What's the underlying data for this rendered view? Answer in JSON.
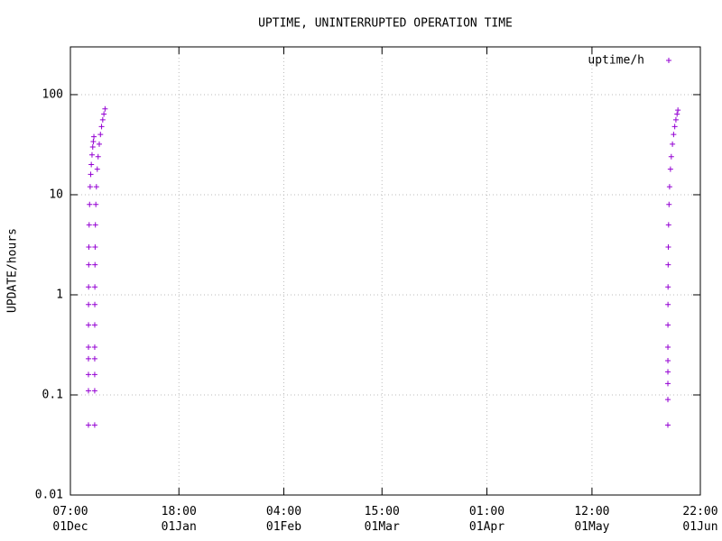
{
  "chart_data": {
    "type": "scatter",
    "title": "UPTIME, UNINTERRUPTED OPERATION TIME",
    "y_label": "UPDATE/hours",
    "log_y": true,
    "grid": true,
    "legend": "top-right",
    "xlim": [
      "12-01 07:00",
      "06-01 22:00"
    ],
    "xticks": [
      {
        "value": "12-01 07:00",
        "label": "07:00\n01Dec"
      },
      {
        "value": "01-01 18:00",
        "label": "18:00\n01Jan"
      },
      {
        "value": "02-01 04:00",
        "label": "04:00\n01Feb"
      },
      {
        "value": "03-01 15:00",
        "label": "15:00\n01Mar"
      },
      {
        "value": "04-01 01:00",
        "label": "01:00\n01Apr"
      },
      {
        "value": "05-01 12:00",
        "label": "12:00\n01May"
      },
      {
        "value": "06-01 22:00",
        "label": "22:00\n01Jun"
      }
    ],
    "ylim": [
      0.01,
      300
    ],
    "yticks": [
      0.01,
      0.1,
      1,
      10,
      100
    ],
    "series": [
      {
        "name": "uptime/h",
        "color": "#9400d3",
        "x": [
          "12-06 12:33",
          "12-06 12:37",
          "12-06 12:40",
          "12-06 12:44",
          "12-06 12:48",
          "12-06 13:00",
          "12-06 13:18",
          "12-06 13:42",
          "12-06 14:30",
          "12-06 15:30",
          "12-06 17:30",
          "12-06 20:30",
          "12-07 00:30",
          "12-07 04:30",
          "12-07 08:30",
          "12-07 13:30",
          "12-07 18:30",
          "12-07 22:30",
          "12-08 02:30",
          "12-08 08:03",
          "12-08 08:07",
          "12-08 08:10",
          "12-08 08:14",
          "12-08 08:18",
          "12-08 08:30",
          "12-08 08:48",
          "12-08 09:12",
          "12-08 10:00",
          "12-08 11:00",
          "12-08 13:00",
          "12-08 16:00",
          "12-08 20:00",
          "12-09 02:00",
          "12-09 08:00",
          "12-09 16:00",
          "12-10 00:00",
          "12-10 08:00",
          "12-10 16:00",
          "12-11 00:00",
          "12-11 08:00",
          "05-23 12:03",
          "05-23 12:05",
          "05-23 12:08",
          "05-23 12:10",
          "05-23 12:13",
          "05-23 12:18",
          "05-23 12:30",
          "05-23 12:48",
          "05-23 13:12",
          "05-23 14:00",
          "05-23 15:00",
          "05-23 17:00",
          "05-23 20:00",
          "05-24 00:00",
          "05-24 06:00",
          "05-24 12:00",
          "05-24 20:00",
          "05-25 04:00",
          "05-25 12:00",
          "05-25 20:00",
          "05-26 04:00",
          "05-26 10:00"
        ],
        "values": [
          0.05,
          0.11,
          0.16,
          0.23,
          0.3,
          0.5,
          0.8,
          1.2,
          2,
          3,
          5,
          8,
          12,
          16,
          20,
          25,
          30,
          34,
          38,
          0.05,
          0.11,
          0.16,
          0.23,
          0.3,
          0.5,
          0.8,
          1.2,
          2,
          3,
          5,
          8,
          12,
          18,
          24,
          32,
          40,
          48,
          56,
          64,
          72,
          0.05,
          0.09,
          0.13,
          0.17,
          0.22,
          0.3,
          0.5,
          0.8,
          1.2,
          2,
          3,
          5,
          8,
          12,
          18,
          24,
          32,
          40,
          48,
          56,
          64,
          70
        ]
      }
    ]
  }
}
